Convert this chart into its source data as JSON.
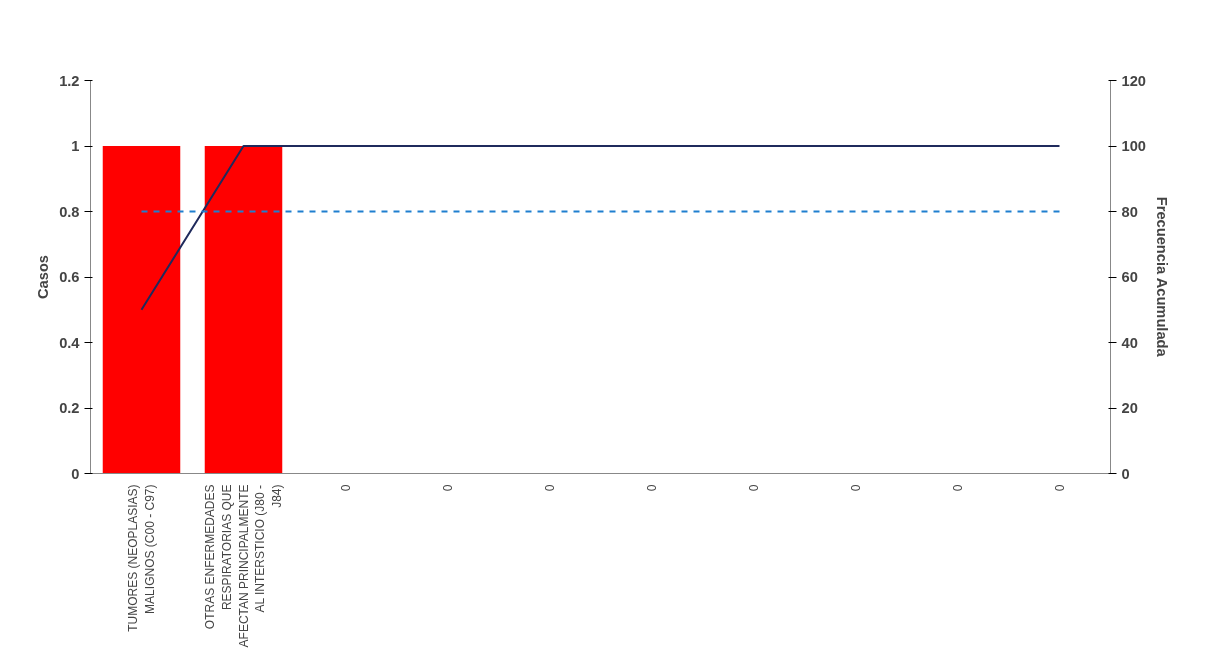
{
  "chart_data": {
    "type": "bar",
    "ylabel": "Casos",
    "y2label": "Frecuencia Acumulada",
    "categories": [
      "TUMORES (NEOPLASIAS) MALIGNOS (C00 - C97)",
      "OTRAS ENFERMEDADES RESPIRATORIAS QUE AFECTAN PRINCIPALMENTE AL INTERSTICIO (J80 - J84)",
      "0",
      "0",
      "0",
      "0",
      "0",
      "0",
      "0",
      "0"
    ],
    "series": [
      {
        "color": "#ff0000",
        "values": [
          1,
          1,
          0,
          0,
          0,
          0,
          0,
          0,
          0,
          0
        ]
      },
      {
        "type": "line",
        "axis": "y2",
        "color": "#1f2a5c",
        "values": [
          50,
          100,
          100,
          100,
          100,
          100,
          100,
          100,
          100,
          100
        ]
      }
    ],
    "ylim": [
      0,
      1.2
    ],
    "yticks": [
      0,
      {
        "value": 0.2,
        "label": "0.2"
      },
      {
        "value": 0.4,
        "label": "0.4"
      },
      {
        "value": 0.6,
        "label": "0.6"
      },
      {
        "value": 0.8,
        "label": "0.8"
      },
      1,
      {
        "value": 1.2,
        "label": "1.2"
      }
    ],
    "y2lim": [
      0,
      120
    ],
    "y2ticks": [
      0,
      20,
      40,
      60,
      80,
      100,
      120
    ],
    "ref_lines": [
      {
        "axis": "y2",
        "value": 80,
        "color": "#1f7fcf",
        "line_style": "dashed"
      }
    ],
    "grid": false,
    "marker": "none"
  }
}
